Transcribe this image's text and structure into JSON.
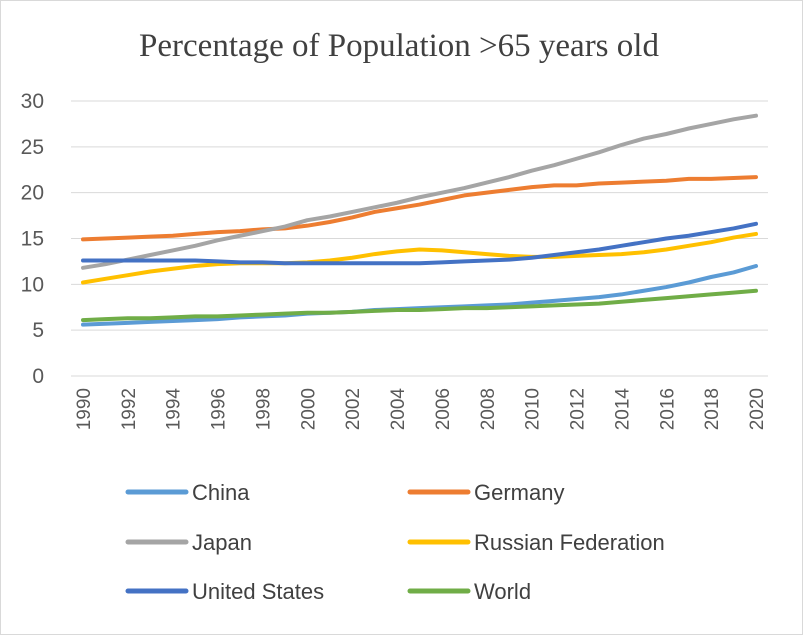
{
  "chart_data": {
    "type": "line",
    "title": "Percentage of Population >65 years old",
    "xlabel": "",
    "ylabel": "",
    "ylim": [
      0,
      30
    ],
    "yticks": [
      0,
      5,
      10,
      15,
      20,
      25,
      30
    ],
    "grid": true,
    "legend_position": "bottom",
    "x": [
      1990,
      1991,
      1992,
      1993,
      1994,
      1995,
      1996,
      1997,
      1998,
      1999,
      2000,
      2001,
      2002,
      2003,
      2004,
      2005,
      2006,
      2007,
      2008,
      2009,
      2010,
      2011,
      2012,
      2013,
      2014,
      2015,
      2016,
      2017,
      2018,
      2019,
      2020
    ],
    "xtick_labels": [
      "1990",
      "1992",
      "1994",
      "1996",
      "1998",
      "2000",
      "2002",
      "2004",
      "2006",
      "2008",
      "2010",
      "2012",
      "2014",
      "2016",
      "2018",
      "2020"
    ],
    "series": [
      {
        "name": "China",
        "color": "#5B9BD5",
        "values": [
          5.6,
          5.7,
          5.8,
          5.9,
          6.0,
          6.1,
          6.2,
          6.4,
          6.5,
          6.6,
          6.8,
          6.9,
          7.0,
          7.2,
          7.3,
          7.4,
          7.5,
          7.6,
          7.7,
          7.8,
          8.0,
          8.2,
          8.4,
          8.6,
          8.9,
          9.3,
          9.7,
          10.2,
          10.8,
          11.3,
          12.0
        ]
      },
      {
        "name": "Germany",
        "color": "#ED7D31",
        "values": [
          14.9,
          15.0,
          15.1,
          15.2,
          15.3,
          15.5,
          15.7,
          15.8,
          16.0,
          16.1,
          16.4,
          16.8,
          17.3,
          17.9,
          18.3,
          18.7,
          19.2,
          19.7,
          20.0,
          20.3,
          20.6,
          20.8,
          20.8,
          21.0,
          21.1,
          21.2,
          21.3,
          21.5,
          21.5,
          21.6,
          21.7
        ]
      },
      {
        "name": "Japan",
        "color": "#A5A5A5",
        "values": [
          11.8,
          12.2,
          12.7,
          13.2,
          13.7,
          14.2,
          14.8,
          15.3,
          15.8,
          16.3,
          17.0,
          17.4,
          17.9,
          18.4,
          18.9,
          19.5,
          20.0,
          20.5,
          21.1,
          21.7,
          22.4,
          23.0,
          23.7,
          24.4,
          25.2,
          25.9,
          26.4,
          27.0,
          27.5,
          28.0,
          28.4
        ]
      },
      {
        "name": "Russian Federation",
        "color": "#FFC000",
        "values": [
          10.2,
          10.6,
          11.0,
          11.4,
          11.7,
          12.0,
          12.2,
          12.3,
          12.3,
          12.3,
          12.4,
          12.6,
          12.9,
          13.3,
          13.6,
          13.8,
          13.7,
          13.5,
          13.3,
          13.1,
          13.0,
          13.0,
          13.1,
          13.2,
          13.3,
          13.5,
          13.8,
          14.2,
          14.6,
          15.1,
          15.5
        ]
      },
      {
        "name": "United States",
        "color": "#4472C4",
        "values": [
          12.6,
          12.6,
          12.6,
          12.6,
          12.6,
          12.6,
          12.5,
          12.4,
          12.4,
          12.3,
          12.3,
          12.3,
          12.3,
          12.3,
          12.3,
          12.3,
          12.4,
          12.5,
          12.6,
          12.7,
          12.9,
          13.2,
          13.5,
          13.8,
          14.2,
          14.6,
          15.0,
          15.3,
          15.7,
          16.1,
          16.6
        ]
      },
      {
        "name": "World",
        "color": "#70AD47",
        "values": [
          6.1,
          6.2,
          6.3,
          6.3,
          6.4,
          6.5,
          6.5,
          6.6,
          6.7,
          6.8,
          6.9,
          6.9,
          7.0,
          7.1,
          7.2,
          7.2,
          7.3,
          7.4,
          7.4,
          7.5,
          7.6,
          7.7,
          7.8,
          7.9,
          8.1,
          8.3,
          8.5,
          8.7,
          8.9,
          9.1,
          9.3
        ]
      }
    ]
  }
}
